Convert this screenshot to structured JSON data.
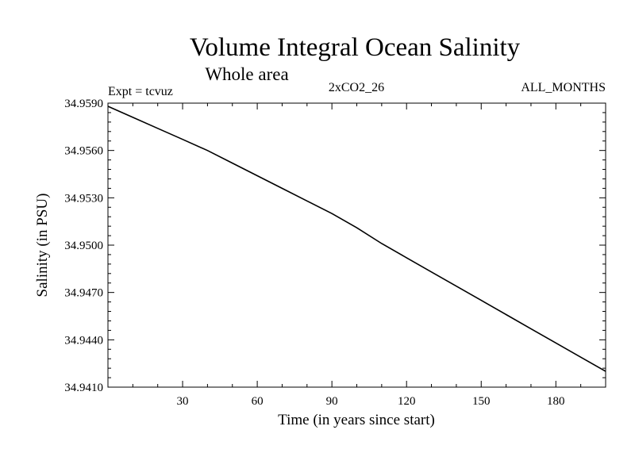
{
  "chart_data": {
    "type": "line",
    "title": "Volume Integral Ocean Salinity",
    "subtitle": "Whole area",
    "header_left": "Expt = tcvuz",
    "header_center": "2xCO2_26",
    "header_right": "ALL_MONTHS",
    "xlabel": "Time (in years since start)",
    "ylabel": "Salinity (in PSU)",
    "xlim": [
      0,
      200
    ],
    "ylim": [
      34.941,
      34.959
    ],
    "x_ticks": [
      30,
      60,
      90,
      120,
      150,
      180
    ],
    "x_tick_labels": [
      "30",
      "60",
      "90",
      "120",
      "150",
      "180"
    ],
    "y_ticks": [
      34.941,
      34.944,
      34.947,
      34.95,
      34.953,
      34.956,
      34.959
    ],
    "y_tick_labels": [
      "34.9410",
      "34.9440",
      "34.9470",
      "34.9500",
      "34.9530",
      "34.9560",
      "34.9590"
    ],
    "grid": false,
    "series": [
      {
        "color": "#000000",
        "x": [
          0,
          10,
          20,
          30,
          40,
          50,
          60,
          70,
          80,
          90,
          100,
          110,
          120,
          130,
          140,
          150,
          160,
          170,
          180,
          190,
          200
        ],
        "y": [
          34.9588,
          34.9581,
          34.9574,
          34.9567,
          34.956,
          34.9552,
          34.9544,
          34.9536,
          34.9528,
          34.952,
          34.9511,
          34.9501,
          34.9492,
          34.9483,
          34.9474,
          34.9465,
          34.9456,
          34.9447,
          34.9438,
          34.9429,
          34.942
        ]
      }
    ]
  }
}
